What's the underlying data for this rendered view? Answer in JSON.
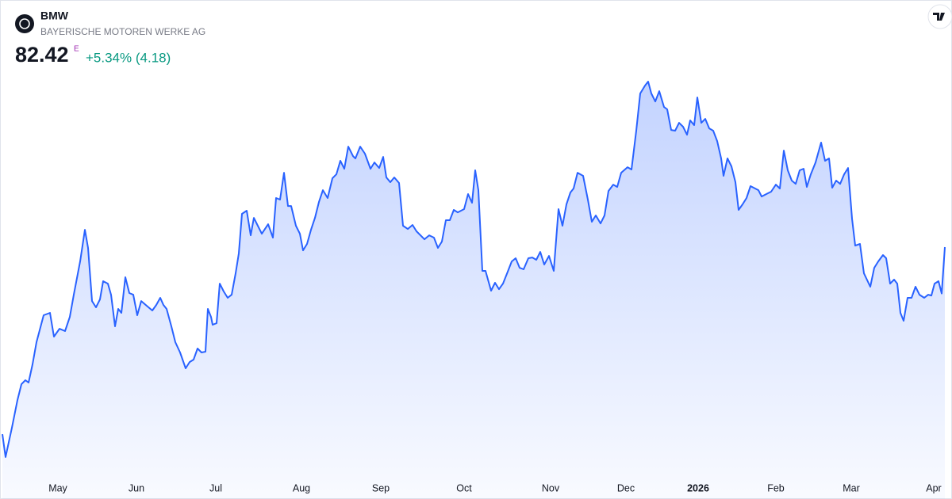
{
  "header": {
    "symbol": "BMW",
    "name": "BAYERISCHE MOTOREN WERKE AG",
    "price": 82.42,
    "price_flag": "E",
    "change": "+5.34% (4.18)"
  },
  "chart_data": {
    "type": "area",
    "color": "#2962ff",
    "x": [
      0,
      0.8,
      2.4,
      3.8,
      4.8,
      5.8,
      6.6,
      7.6,
      8.6,
      10.4,
      12,
      13,
      14.4,
      15.8,
      17,
      18,
      19.6,
      20.8,
      21.6,
      22.6,
      23.6,
      24.6,
      25.4,
      26.6,
      27.4,
      28.4,
      29.2,
      30,
      31,
      32,
      33,
      34,
      35,
      36.4,
      37.8,
      38.8,
      39.8,
      40.6,
      41.4,
      42.6,
      43.6,
      44.8,
      46.2,
      47.2,
      48.2,
      49.2,
      50.2,
      51.2,
      51.8,
      52.6,
      53,
      54,
      54.8,
      55.8,
      56.8,
      57.8,
      58.8,
      59.6,
      60.4,
      61.6,
      62.6,
      63.4,
      65.4,
      67,
      68.2,
      69,
      70,
      71,
      72,
      72.8,
      74,
      75,
      75.8,
      76.8,
      77.8,
      78.8,
      79.8,
      80.8,
      82,
      83.2,
      84.2,
      85.2,
      86.2,
      87.2,
      88.4,
      89,
      90.2,
      91.4,
      92.8,
      93.8,
      95,
      96,
      96.8,
      97.8,
      98.8,
      100,
      101,
      102.2,
      103.4,
      104.4,
      106.4,
      107.6,
      108.8,
      109.8,
      110.8,
      111.8,
      112.8,
      113.8,
      114.8,
      116.4,
      117.4,
      118.4,
      119.2,
      120,
      121,
      121.8,
      123.2,
      124.2,
      125.2,
      126.2,
      127.4,
      128.4,
      129.4,
      130.4,
      131.4,
      132.6,
      133.6,
      134.6,
      135.6,
      136.6,
      137.8,
      139,
      140.2,
      141.2,
      142.2,
      143.2,
      144,
      145,
      146.4,
      147.6,
      148.6,
      149.6,
      150.8,
      151.8,
      152.8,
      154,
      155,
      156,
      157.6,
      158.6,
      159.8,
      160.8,
      162,
      162.8,
      163.6,
      164.6,
      165.6,
      166.8,
      167.6,
      168.6,
      169.6,
      170.6,
      171.6,
      172.6,
      173.4,
      174.4,
      175.2,
      176.2,
      177.2,
      178.2,
      179.2,
      180.2,
      181.2,
      181.8,
      182.8,
      183.8,
      184.8,
      185.6,
      186.6,
      187.6,
      188.6,
      189.4,
      190.6,
      191.4,
      192.6,
      193.8,
      195,
      196,
      197,
      198,
      199,
      200,
      201,
      202,
      202.8,
      203.8,
      205,
      206.4,
      207.4,
      208.4,
      209.2,
      210.2,
      211.2,
      212.2,
      213.2,
      214.2,
      215,
      216.2,
      217.2,
      218.8,
      219.8,
      220.8,
      222,
      222.8,
      223.8,
      224.8,
      225.6,
      226.4,
      227.2,
      228.2,
      229.2,
      230.2,
      231.2,
      232.4,
      233.4,
      234.2,
      235,
      236,
      236.8,
      237.6
    ],
    "values": [
      65.56,
      63.49,
      66.13,
      68.63,
      70.06,
      70.42,
      70.21,
      71.85,
      73.85,
      76.28,
      76.49,
      74.35,
      75.06,
      74.85,
      76.13,
      78.13,
      81.13,
      83.99,
      82.35,
      77.56,
      76.99,
      77.71,
      79.35,
      79.13,
      78.13,
      75.28,
      76.85,
      76.49,
      79.71,
      78.28,
      78.13,
      76.28,
      77.56,
      77.13,
      76.71,
      77.21,
      77.85,
      77.21,
      76.85,
      75.28,
      73.85,
      72.92,
      71.49,
      72.06,
      72.28,
      73.28,
      72.92,
      72.99,
      76.85,
      76.13,
      75.42,
      75.56,
      79.13,
      78.42,
      77.85,
      78.13,
      80.06,
      81.85,
      85.42,
      85.71,
      83.49,
      85.06,
      83.63,
      84.49,
      83.28,
      86.85,
      86.71,
      89.13,
      86.13,
      86.13,
      84.35,
      83.63,
      82.13,
      82.71,
      83.99,
      85.06,
      86.49,
      87.56,
      86.85,
      88.63,
      88.99,
      90.21,
      89.49,
      91.49,
      90.63,
      90.42,
      91.49,
      90.85,
      89.49,
      90.06,
      89.56,
      90.56,
      88.71,
      88.28,
      88.71,
      88.21,
      84.35,
      84.06,
      84.42,
      83.85,
      83.13,
      83.49,
      83.28,
      82.35,
      82.92,
      84.85,
      84.85,
      85.78,
      85.56,
      85.85,
      87.21,
      86.42,
      89.35,
      87.56,
      80.28,
      80.28,
      78.49,
      79.21,
      78.63,
      79.13,
      80.21,
      81.13,
      81.42,
      80.56,
      80.42,
      81.42,
      81.49,
      81.28,
      81.99,
      80.85,
      81.63,
      80.28,
      85.85,
      84.35,
      86.28,
      87.35,
      87.71,
      89.13,
      88.85,
      86.71,
      84.71,
      85.28,
      84.56,
      85.28,
      87.49,
      88.06,
      87.85,
      89.13,
      89.63,
      89.42,
      92.92,
      96.28,
      96.99,
      97.35,
      96.28,
      95.56,
      96.49,
      95.06,
      94.85,
      92.99,
      92.92,
      93.63,
      93.28,
      92.56,
      93.85,
      93.42,
      95.92,
      93.63,
      93.99,
      93.13,
      92.92,
      91.99,
      90.42,
      88.85,
      90.42,
      89.71,
      88.28,
      85.78,
      86.28,
      86.85,
      87.92,
      87.78,
      87.56,
      86.99,
      87.21,
      87.42,
      88.06,
      87.71,
      91.13,
      89.35,
      88.42,
      88.13,
      89.35,
      89.49,
      87.85,
      88.99,
      90.06,
      91.85,
      90.21,
      90.42,
      87.78,
      88.42,
      88.13,
      88.99,
      89.56,
      84.99,
      82.56,
      82.71,
      80.06,
      78.85,
      80.56,
      81.13,
      81.71,
      81.42,
      79.13,
      79.49,
      79.13,
      76.49,
      75.78,
      77.85,
      77.85,
      78.85,
      78.13,
      77.85,
      78.13,
      78.06,
      79.13,
      79.35,
      78.24,
      82.42
    ],
    "xlim": [
      0,
      237.6
    ],
    "ylim": [
      61.85,
      98.28
    ],
    "xticks": [
      {
        "value": 14,
        "label": "May"
      },
      {
        "value": 33.8,
        "label": "Jun"
      },
      {
        "value": 53.8,
        "label": "Jul"
      },
      {
        "value": 75.4,
        "label": "Aug"
      },
      {
        "value": 95.4,
        "label": "Sep"
      },
      {
        "value": 116.4,
        "label": "Oct"
      },
      {
        "value": 138.2,
        "label": "Nov"
      },
      {
        "value": 157.2,
        "label": "Dec"
      },
      {
        "value": 175.4,
        "label": "2026"
      },
      {
        "value": 195,
        "label": "Feb"
      },
      {
        "value": 214,
        "label": "Mar"
      },
      {
        "value": 234.8,
        "label": "Apr"
      }
    ]
  }
}
